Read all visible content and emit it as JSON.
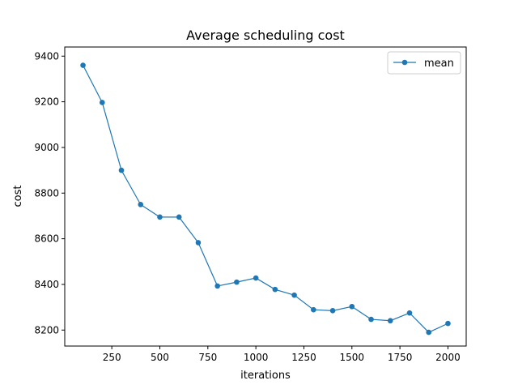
{
  "chart_data": {
    "type": "line",
    "title": "Average scheduling cost",
    "xlabel": "iterations",
    "ylabel": "cost",
    "xlim": [
      5,
      2095
    ],
    "ylim": [
      8130,
      9440
    ],
    "xticks": [
      250,
      500,
      750,
      1000,
      1250,
      1500,
      1750,
      2000
    ],
    "yticks": [
      8200,
      8400,
      8600,
      8800,
      9000,
      9200,
      9400
    ],
    "grid": false,
    "legend_position": "top-right",
    "series": [
      {
        "name": "mean",
        "color": "#1f77b4",
        "marker": "circle",
        "x": [
          100,
          200,
          300,
          400,
          500,
          600,
          700,
          800,
          900,
          1000,
          1100,
          1200,
          1300,
          1400,
          1500,
          1600,
          1700,
          1800,
          1900,
          2000
        ],
        "y": [
          9360,
          9197,
          8900,
          8750,
          8695,
          8695,
          8583,
          8393,
          8410,
          8428,
          8378,
          8353,
          8289,
          8285,
          8303,
          8247,
          8241,
          8275,
          8190,
          8229
        ]
      }
    ]
  }
}
